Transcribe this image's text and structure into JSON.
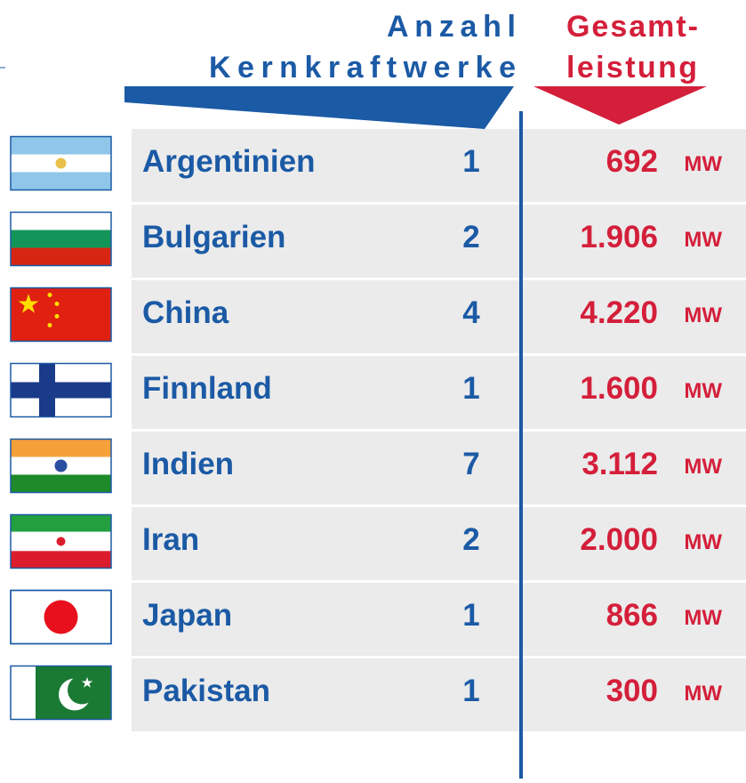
{
  "header": {
    "count_label": [
      "Anzahl",
      "Kernkraftwerke"
    ],
    "power_label": [
      "Gesamt-",
      "leistung"
    ]
  },
  "unit": "MW",
  "table": {
    "rows": [
      {
        "country": "Argentinien",
        "count": 1,
        "power": "692"
      },
      {
        "country": "Bulgarien",
        "count": 2,
        "power": "1.906"
      },
      {
        "country": "China",
        "count": 4,
        "power": "4.220"
      },
      {
        "country": "Finnland",
        "count": 1,
        "power": "1.600"
      },
      {
        "country": "Indien",
        "count": 7,
        "power": "3.112"
      },
      {
        "country": "Iran",
        "count": 2,
        "power": "2.000"
      },
      {
        "country": "Japan",
        "count": 1,
        "power": "866"
      },
      {
        "country": "Pakistan",
        "count": 1,
        "power": "300"
      }
    ]
  }
}
